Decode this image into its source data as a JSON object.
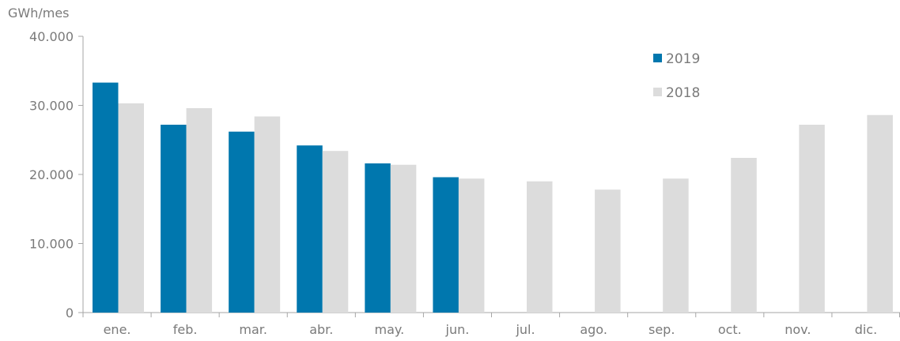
{
  "chart_data": {
    "type": "bar",
    "ylabel": "GWh/mes",
    "categories": [
      "ene.",
      "feb.",
      "mar.",
      "abr.",
      "may.",
      "jun.",
      "jul.",
      "ago.",
      "sep.",
      "oct.",
      "nov.",
      "dic."
    ],
    "ylim": [
      0,
      40000
    ],
    "yticks": [
      0,
      10000,
      20000,
      30000,
      40000
    ],
    "ytick_labels": [
      "0",
      "10.000",
      "20.000",
      "30.000",
      "40.000"
    ],
    "series": [
      {
        "name": "2019",
        "color": "#0077ae",
        "values": [
          33300,
          27200,
          26200,
          24200,
          21600,
          19600,
          null,
          null,
          null,
          null,
          null,
          null
        ]
      },
      {
        "name": "2018",
        "color": "#dcdcdc",
        "values": [
          30300,
          29600,
          28400,
          23400,
          21400,
          19400,
          19000,
          17800,
          19400,
          22400,
          27200,
          28600
        ]
      }
    ],
    "legend_position": "top-right",
    "grid": false
  }
}
